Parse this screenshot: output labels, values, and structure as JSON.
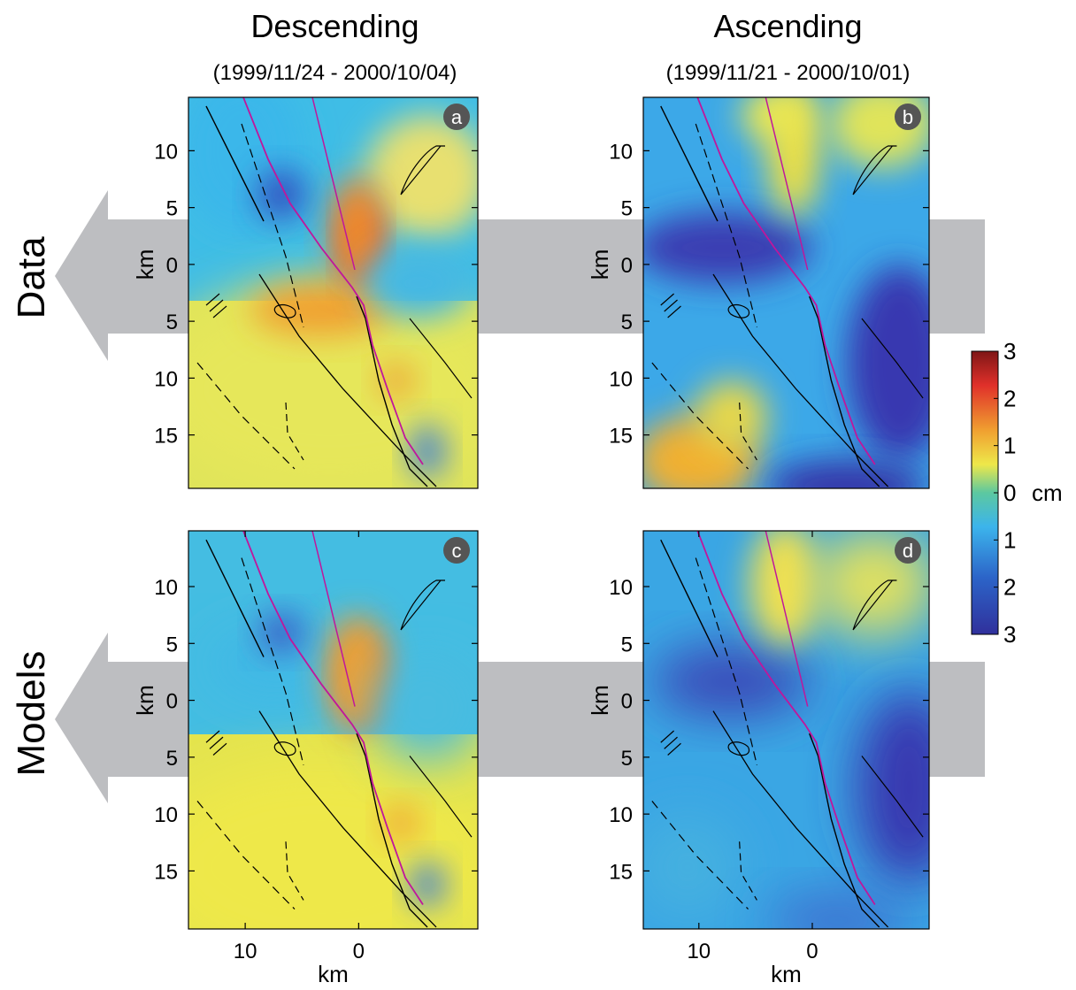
{
  "chart_data": [
    {
      "type": "heatmap",
      "title": "Descending",
      "subtitle": "(1999/11/24 - 2000/10/04)",
      "row_label": "Data",
      "label": "a",
      "ylabel": "km",
      "xlim": [
        15,
        -10.5
      ],
      "ylim": [
        -19.7,
        14.7
      ],
      "yticks": [
        10,
        5,
        0,
        {
          "value": -5,
          "label": "5"
        },
        {
          "value": -10,
          "label": "10"
        },
        {
          "value": -15,
          "label": "15"
        }
      ]
    },
    {
      "type": "heatmap",
      "title": "Ascending",
      "subtitle": "(1999/11/21 - 2000/10/01)",
      "label": "b",
      "ylabel": "km",
      "xlim": [
        14.9,
        -10.3
      ],
      "ylim": [
        -19.7,
        14.7
      ],
      "yticks": [
        10,
        5,
        0,
        {
          "value": -5,
          "label": "5"
        },
        {
          "value": -10,
          "label": "10"
        },
        {
          "value": -15,
          "label": "15"
        }
      ]
    },
    {
      "type": "heatmap",
      "row_label": "Models",
      "label": "c",
      "ylabel": "km",
      "xlabel": "km",
      "xlim": [
        15,
        -10.5
      ],
      "ylim": [
        -20.1,
        14.9
      ],
      "xticks": [
        10,
        0
      ],
      "yticks": [
        10,
        5,
        0,
        {
          "value": -5,
          "label": "5"
        },
        {
          "value": -10,
          "label": "10"
        },
        {
          "value": -15,
          "label": "15"
        }
      ]
    },
    {
      "type": "heatmap",
      "label": "d",
      "ylabel": "km",
      "xlabel": "km",
      "xlim": [
        14.9,
        -10.3
      ],
      "ylim": [
        -20.1,
        14.9
      ],
      "xticks": [
        10,
        0
      ],
      "yticks": [
        10,
        5,
        0,
        {
          "value": -5,
          "label": "5"
        },
        {
          "value": -10,
          "label": "10"
        },
        {
          "value": -15,
          "label": "15"
        }
      ]
    }
  ],
  "colorbar": {
    "label": "cm",
    "lim": [
      -3,
      3
    ],
    "ticks": [
      3,
      2,
      1,
      0,
      {
        "value": -1,
        "label": "1"
      },
      {
        "value": -2,
        "label": "2"
      },
      {
        "value": -3,
        "label": "3"
      }
    ]
  }
}
